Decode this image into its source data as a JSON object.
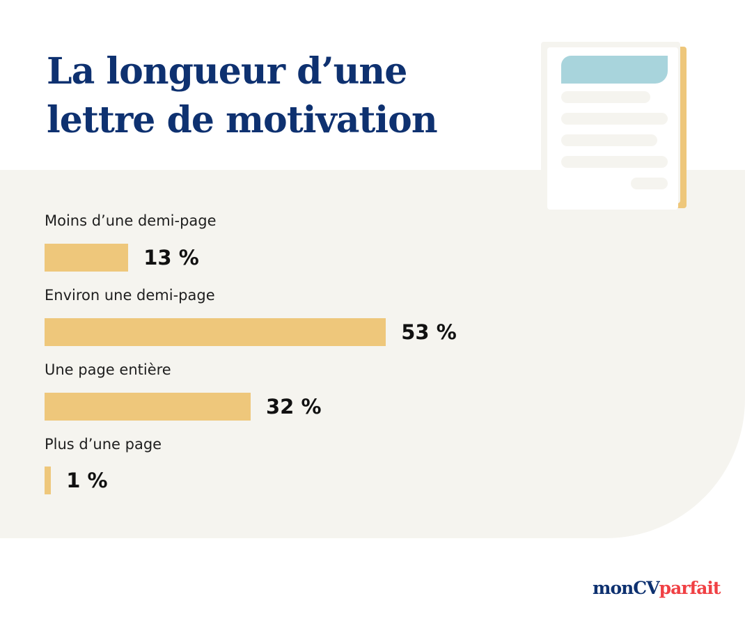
{
  "title_lines": [
    "La longueur d’une",
    "lettre de motivation"
  ],
  "colors": {
    "title": "#0e3170",
    "bar": "#eec77b",
    "background_panel": "#f5f4ef",
    "doc_header": "#a8d4dc",
    "logo_primary": "#0e3170",
    "logo_accent": "#f04044"
  },
  "chart_data": {
    "type": "bar",
    "orientation": "horizontal",
    "categories": [
      "Moins d’une demi-page",
      "Environ une demi-page",
      "Une page entière",
      "Plus d’une page"
    ],
    "values": [
      13,
      53,
      32,
      1
    ],
    "value_labels": [
      "13 %",
      "53 %",
      "32 %",
      "1 %"
    ],
    "unit": "%",
    "grid": false
  },
  "decoration": {
    "icon": "document-icon"
  },
  "logo": {
    "part1": "monCV",
    "part2": "parfait"
  }
}
